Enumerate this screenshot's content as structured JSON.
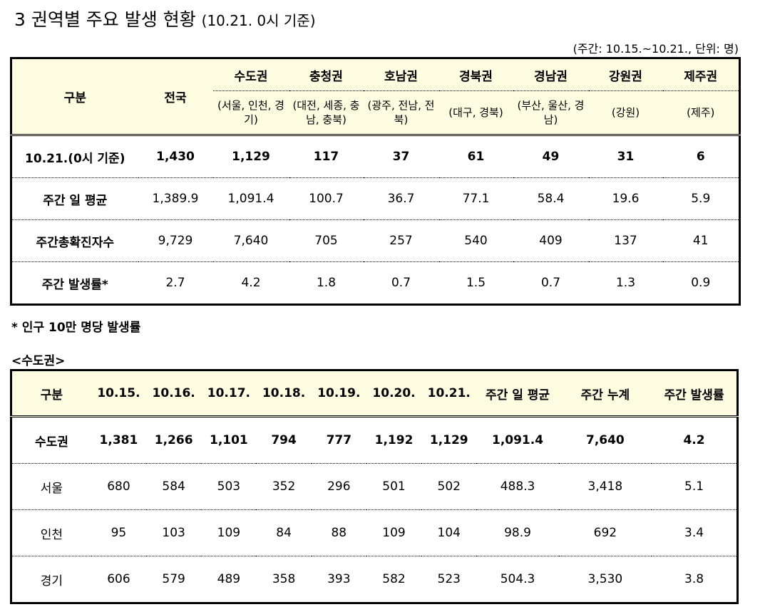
{
  "title": {
    "main": "3  권역별 주요 발생 현황",
    "sub": "(10.21. 0시 기준)"
  },
  "period_note": "(주간: 10.15.~10.21., 단위: 명)",
  "table1": {
    "header_label": "구분",
    "national_label": "전국",
    "regions": [
      {
        "name": "수도권",
        "detail": "(서울, 인천, 경기)"
      },
      {
        "name": "충청권",
        "detail": "(대전, 세종, 충남, 충북)"
      },
      {
        "name": "호남권",
        "detail": "(광주, 전남, 전북)"
      },
      {
        "name": "경북권",
        "detail": "(대구, 경북)"
      },
      {
        "name": "경남권",
        "detail": "(부산, 울산, 경남)"
      },
      {
        "name": "강원권",
        "detail": "(강원)"
      },
      {
        "name": "제주권",
        "detail": "(제주)"
      }
    ],
    "rows": [
      {
        "label": "10.21.(0시 기준)",
        "values": [
          "1,430",
          "1,129",
          "117",
          "37",
          "61",
          "49",
          "31",
          "6"
        ]
      },
      {
        "label": "주간 일 평균",
        "values": [
          "1,389.9",
          "1,091.4",
          "100.7",
          "36.7",
          "77.1",
          "58.4",
          "19.6",
          "5.9"
        ]
      },
      {
        "label": "주간총확진자수",
        "values": [
          "9,729",
          "7,640",
          "705",
          "257",
          "540",
          "409",
          "137",
          "41"
        ]
      },
      {
        "label": "주간 발생률*",
        "values": [
          "2.7",
          "4.2",
          "1.8",
          "0.7",
          "1.5",
          "0.7",
          "1.3",
          "0.9"
        ]
      }
    ]
  },
  "footnote": "* 인구 10만 명당 발생률",
  "section_label": "<수도권>",
  "table2": {
    "headers": [
      "구분",
      "10.15.",
      "10.16.",
      "10.17.",
      "10.18.",
      "10.19.",
      "10.20.",
      "10.21.",
      "주간 일 평균",
      "주간 누계",
      "주간 발생률"
    ],
    "rows": [
      {
        "label": "수도권",
        "values": [
          "1,381",
          "1,266",
          "1,101",
          "794",
          "777",
          "1,192",
          "1,129",
          "1,091.4",
          "7,640",
          "4.2"
        ]
      },
      {
        "label": "서울",
        "values": [
          "680",
          "584",
          "503",
          "352",
          "296",
          "501",
          "502",
          "488.3",
          "3,418",
          "5.1"
        ]
      },
      {
        "label": "인천",
        "values": [
          "95",
          "103",
          "109",
          "84",
          "88",
          "109",
          "104",
          "98.9",
          "692",
          "3.4"
        ]
      },
      {
        "label": "경기",
        "values": [
          "606",
          "579",
          "489",
          "358",
          "393",
          "582",
          "523",
          "504.3",
          "3,530",
          "3.8"
        ]
      }
    ]
  }
}
